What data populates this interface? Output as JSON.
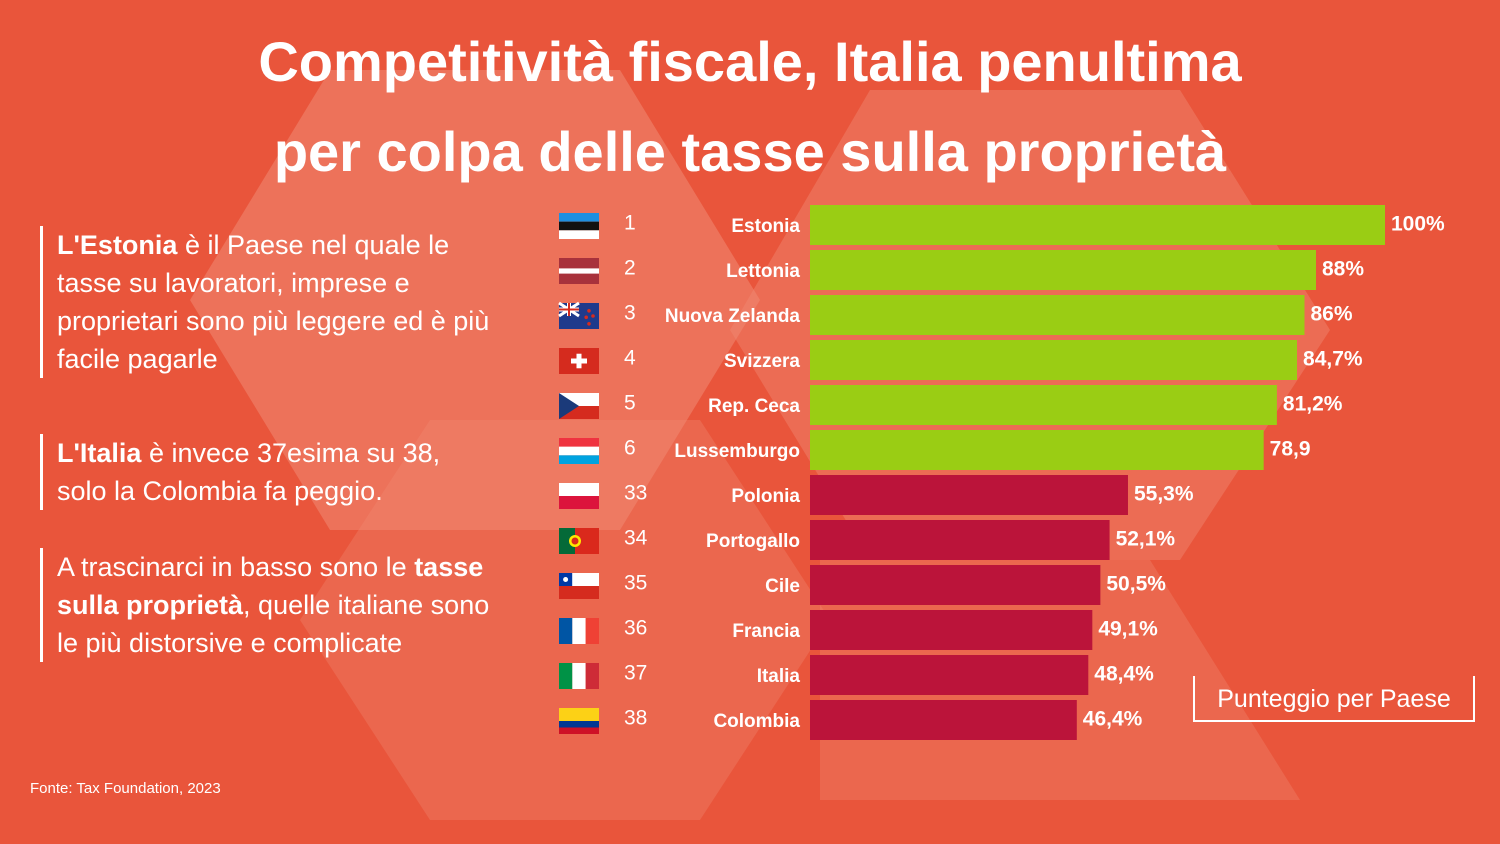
{
  "title_lines": [
    "Competitività fiscale, Italia penultima",
    "per colpa delle tasse sulla proprietà"
  ],
  "notes": [
    {
      "bold": "L'Estonia",
      "rest": " è il Paese nel quale le tasse su lavoratori, imprese e proprietari sono più leggere ed è più facile pagarle"
    },
    {
      "bold": "L'Italia",
      "rest": " è invece 37esima su 38, solo la Colombia fa peggio."
    },
    {
      "pre": "A trascinarci in basso sono le ",
      "bold": "tasse sulla proprietà",
      "rest": ", quelle italiane sono le più distorsive e complicate"
    }
  ],
  "source": "Fonte: Tax Foundation, 2023",
  "legend_label": "Punteggio per Paese",
  "colors": {
    "background": "#E9553B",
    "top_bar": "#9ACD14",
    "bottom_bar": "#BB143A",
    "shape": "#F08A74"
  },
  "chart_data": {
    "type": "bar",
    "orientation": "horizontal",
    "categories": [
      "Estonia",
      "Lettonia",
      "Nuova Zelanda",
      "Svizzera",
      "Rep. Ceca",
      "Lussemburgo",
      "Polonia",
      "Portogallo",
      "Cile",
      "Francia",
      "Italia",
      "Colombia"
    ],
    "ranks": [
      "1",
      "2",
      "3",
      "4",
      "5",
      "6",
      "33",
      "34",
      "35",
      "36",
      "37",
      "38"
    ],
    "values": [
      100,
      88,
      86,
      84.7,
      81.2,
      78.9,
      55.3,
      52.1,
      50.5,
      49.1,
      48.4,
      46.4
    ],
    "value_labels": [
      "100%",
      "88%",
      "86%",
      "84,7%",
      "81,2%",
      "78,9",
      "55,3%",
      "52,1%",
      "50,5%",
      "49,1%",
      "48,4%",
      "46,4%"
    ],
    "groups": [
      "top",
      "top",
      "top",
      "top",
      "top",
      "top",
      "bottom",
      "bottom",
      "bottom",
      "bottom",
      "bottom",
      "bottom"
    ],
    "flags": [
      "flag-estonia-icon",
      "flag-latvia-icon",
      "flag-new-zealand-icon",
      "flag-switzerland-icon",
      "flag-czech-republic-icon",
      "flag-luxembourg-icon",
      "flag-poland-icon",
      "flag-portugal-icon",
      "flag-chile-icon",
      "flag-france-icon",
      "flag-italy-icon",
      "flag-colombia-icon"
    ],
    "xlim": [
      0,
      100
    ],
    "legend": "bottom-right"
  }
}
